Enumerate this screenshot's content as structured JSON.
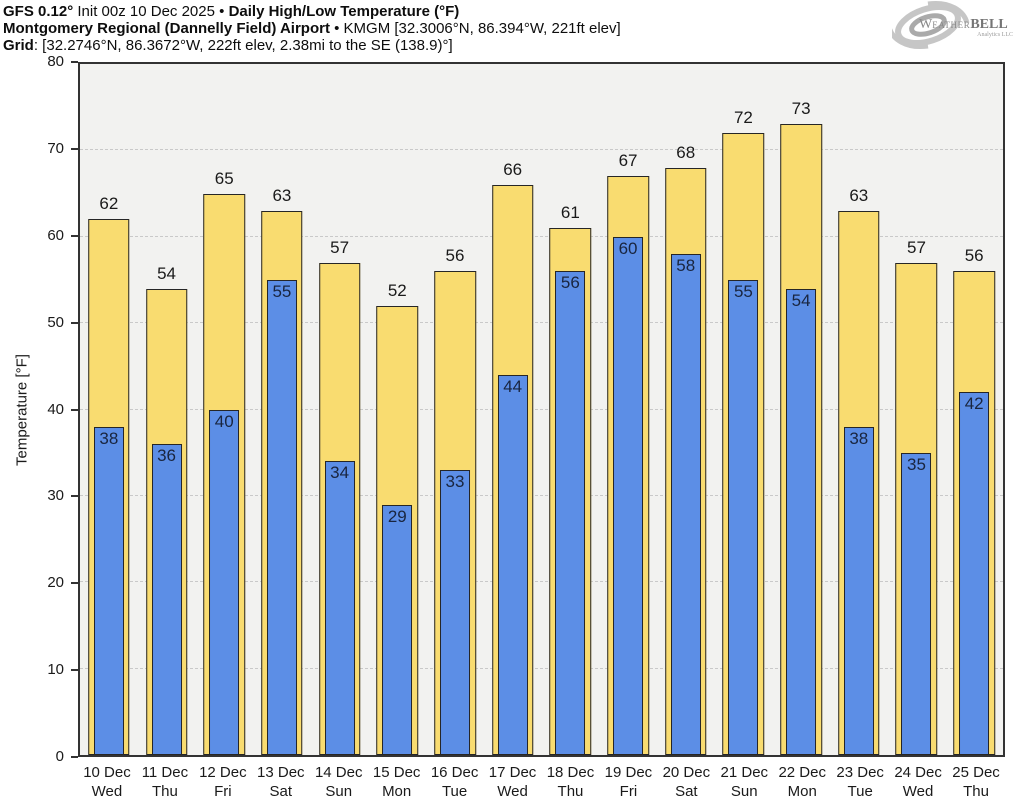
{
  "header": {
    "model": "GFS 0.12°",
    "init": " Init 00z 10 Dec 2025 • ",
    "product": "Daily High/Low Temperature (°F)",
    "station": "Montgomery Regional (Dannelly Field) Airport",
    "station_meta": " • KMGM [32.3006°N, 86.394°W, 221ft elev]",
    "grid_label": "Grid",
    "grid_value": ": [32.2746°N, 86.3672°W, 222ft elev, 2.38mi to the SE (138.9)°]"
  },
  "logo": {
    "brand_w": "W",
    "brand_eather": "EATHER",
    "brand_bell": "BELL",
    "tagline": "Analytics LLC"
  },
  "colors": {
    "plot_bg": "#f2f2f0",
    "axis": "#333333",
    "grid": "#c9c9c9",
    "bar_border": "#262626",
    "high_label": "#1a1a1a",
    "low_label": "#19253f"
  },
  "chart_data": {
    "type": "bar",
    "title": "Daily High/Low Temperature (°F)",
    "subtitle": "GFS 0.12° Init 00z 10 Dec 2025 — Montgomery Regional (Dannelly Field) Airport, KMGM",
    "xlabel": "",
    "ylabel": "Temperature [°F]",
    "ylim": [
      0,
      80
    ],
    "yticks": [
      0,
      10,
      20,
      30,
      40,
      50,
      60,
      70,
      80
    ],
    "grid": "horizontal dashed gridlines every 10°F",
    "legend": "none (values labeled on bars)",
    "categories": [
      {
        "date": "10 Dec",
        "day": "Wed"
      },
      {
        "date": "11 Dec",
        "day": "Thu"
      },
      {
        "date": "12 Dec",
        "day": "Fri"
      },
      {
        "date": "13 Dec",
        "day": "Sat"
      },
      {
        "date": "14 Dec",
        "day": "Sun"
      },
      {
        "date": "15 Dec",
        "day": "Mon"
      },
      {
        "date": "16 Dec",
        "day": "Tue"
      },
      {
        "date": "17 Dec",
        "day": "Wed"
      },
      {
        "date": "18 Dec",
        "day": "Thu"
      },
      {
        "date": "19 Dec",
        "day": "Fri"
      },
      {
        "date": "20 Dec",
        "day": "Sat"
      },
      {
        "date": "21 Dec",
        "day": "Sun"
      },
      {
        "date": "22 Dec",
        "day": "Mon"
      },
      {
        "date": "23 Dec",
        "day": "Tue"
      },
      {
        "date": "24 Dec",
        "day": "Wed"
      },
      {
        "date": "25 Dec",
        "day": "Thu"
      }
    ],
    "series": [
      {
        "name": "Daily High (°F)",
        "color": "#f9dc70",
        "values": [
          62,
          54,
          65,
          63,
          57,
          52,
          56,
          66,
          61,
          67,
          68,
          72,
          73,
          63,
          57,
          56
        ]
      },
      {
        "name": "Daily Low (°F)",
        "color": "#5c8ee6",
        "values": [
          38,
          36,
          40,
          55,
          34,
          29,
          33,
          44,
          56,
          60,
          58,
          55,
          54,
          38,
          35,
          42
        ]
      }
    ]
  }
}
